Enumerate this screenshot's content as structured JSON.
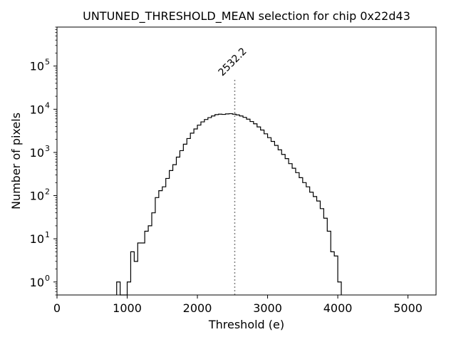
{
  "chart_data": {
    "type": "histogram-step",
    "title": "UNTUNED_THRESHOLD_MEAN selection for chip 0x22d43",
    "xlabel": "Threshold (e)",
    "ylabel": "Number of pixels",
    "xlim": [
      0,
      5400
    ],
    "ylim": [
      0.5,
      800000
    ],
    "yscale": "log",
    "xticks": [
      0,
      1000,
      2000,
      3000,
      4000,
      5000
    ],
    "xtick_labels": [
      "0",
      "1000",
      "2000",
      "3000",
      "4000",
      "5000"
    ],
    "yticks": [
      1,
      10,
      100,
      1000,
      10000,
      100000
    ],
    "ytick_labels": [
      "10",
      "10",
      "10",
      "10",
      "10",
      "10"
    ],
    "ytick_exponents": [
      "0",
      "1",
      "2",
      "3",
      "4",
      "5"
    ],
    "bin_width": 50,
    "bins": [
      [
        850,
        1
      ],
      [
        900,
        0
      ],
      [
        950,
        0
      ],
      [
        1000,
        1
      ],
      [
        1050,
        5
      ],
      [
        1100,
        3
      ],
      [
        1150,
        8
      ],
      [
        1200,
        8
      ],
      [
        1250,
        15
      ],
      [
        1300,
        20
      ],
      [
        1350,
        40
      ],
      [
        1400,
        90
      ],
      [
        1450,
        130
      ],
      [
        1500,
        160
      ],
      [
        1550,
        250
      ],
      [
        1600,
        380
      ],
      [
        1650,
        520
      ],
      [
        1700,
        780
      ],
      [
        1750,
        1100
      ],
      [
        1800,
        1550
      ],
      [
        1850,
        2100
      ],
      [
        1900,
        2800
      ],
      [
        1950,
        3500
      ],
      [
        2000,
        4300
      ],
      [
        2050,
        5100
      ],
      [
        2100,
        5800
      ],
      [
        2150,
        6400
      ],
      [
        2200,
        7000
      ],
      [
        2250,
        7500
      ],
      [
        2300,
        7700
      ],
      [
        2350,
        7600
      ],
      [
        2400,
        7800
      ],
      [
        2450,
        7900
      ],
      [
        2500,
        7700
      ],
      [
        2550,
        7400
      ],
      [
        2600,
        7000
      ],
      [
        2650,
        6500
      ],
      [
        2700,
        5900
      ],
      [
        2750,
        5200
      ],
      [
        2800,
        4600
      ],
      [
        2850,
        3900
      ],
      [
        2900,
        3300
      ],
      [
        2950,
        2700
      ],
      [
        3000,
        2200
      ],
      [
        3050,
        1800
      ],
      [
        3100,
        1450
      ],
      [
        3150,
        1150
      ],
      [
        3200,
        900
      ],
      [
        3250,
        720
      ],
      [
        3300,
        550
      ],
      [
        3350,
        430
      ],
      [
        3400,
        340
      ],
      [
        3450,
        260
      ],
      [
        3500,
        200
      ],
      [
        3550,
        160
      ],
      [
        3600,
        120
      ],
      [
        3650,
        95
      ],
      [
        3700,
        75
      ],
      [
        3750,
        50
      ],
      [
        3800,
        30
      ],
      [
        3850,
        15
      ],
      [
        3900,
        5
      ],
      [
        3950,
        4
      ],
      [
        4000,
        1
      ]
    ],
    "annotation": {
      "label": "2532.2",
      "x": 2532.2,
      "style": "dotted vertical line",
      "color": "#808080"
    }
  }
}
